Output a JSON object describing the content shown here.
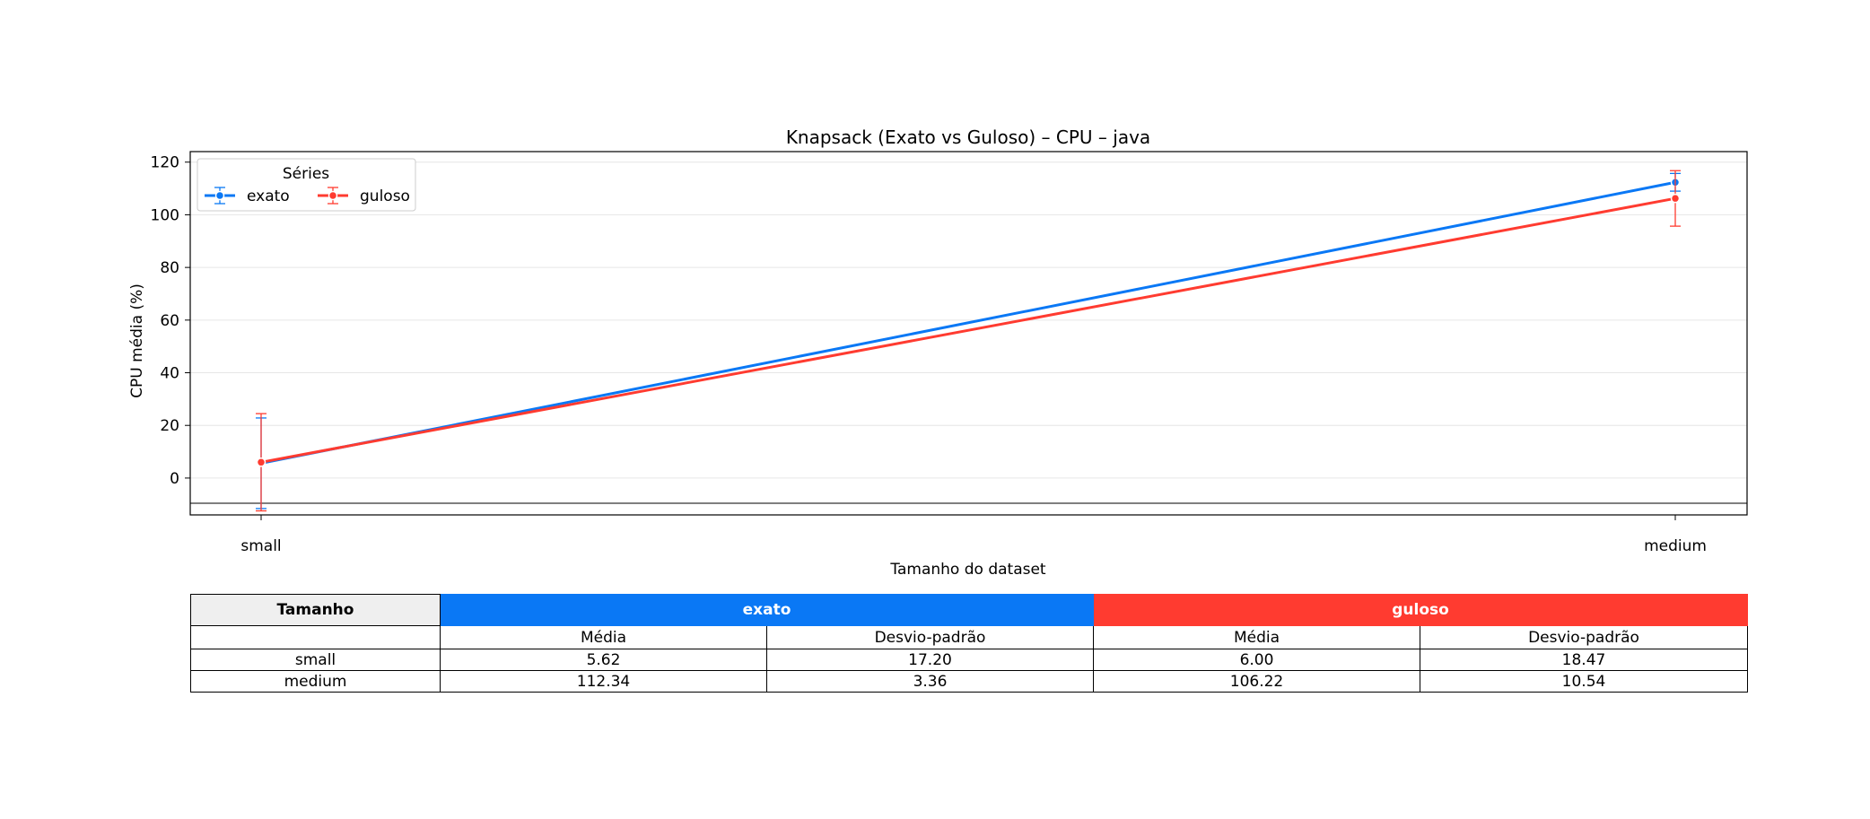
{
  "chart_data": {
    "type": "line",
    "title": "Knapsack (Exato vs Guloso) – CPU – java",
    "xlabel": "Tamanho do dataset",
    "ylabel": "CPU média (%)",
    "categories": [
      "small",
      "medium"
    ],
    "ylim": [
      -14,
      124
    ],
    "yticks": [
      0,
      20,
      40,
      60,
      80,
      100,
      120
    ],
    "grid": "horizontal",
    "legend": {
      "title": "Séries",
      "placement": "top-left"
    },
    "series": [
      {
        "name": "exato",
        "color": "#0a78f5",
        "values": [
          5.62,
          112.34
        ],
        "err": [
          17.2,
          3.36
        ]
      },
      {
        "name": "guloso",
        "color": "#ff3b30",
        "values": [
          6.0,
          106.22
        ],
        "err": [
          18.47,
          10.54
        ]
      }
    ]
  },
  "table": {
    "size_header": "Tamanho",
    "group_exato": "exato",
    "group_guloso": "guloso",
    "sub_mean": "Média",
    "sub_std": "Desvio-padrão",
    "rows": [
      {
        "size": "small",
        "exato_mean": "5.62",
        "exato_std": "17.20",
        "guloso_mean": "6.00",
        "guloso_std": "18.47"
      },
      {
        "size": "medium",
        "exato_mean": "112.34",
        "exato_std": "3.36",
        "guloso_mean": "106.22",
        "guloso_std": "10.54"
      }
    ]
  }
}
